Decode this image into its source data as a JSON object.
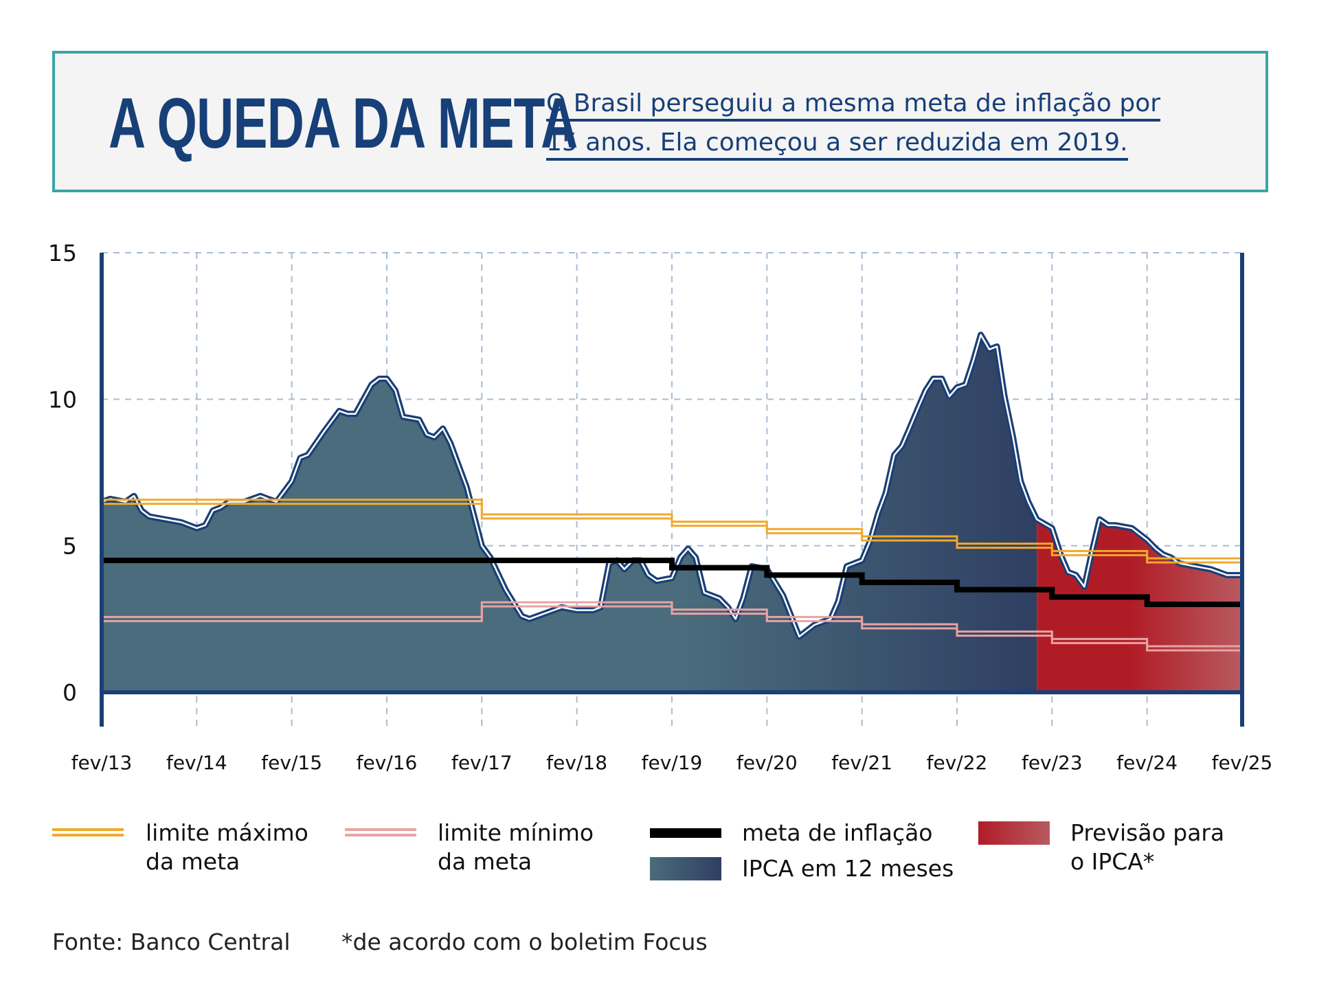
{
  "header": {
    "title": "A QUEDA DA META",
    "subtitle_line1": "O Brasil perseguiu a mesma meta de inflação por",
    "subtitle_line2": "15 anos. Ela começou a ser reduzida em 2019."
  },
  "legend": {
    "max_label_1": "limite máximo",
    "max_label_2": "da meta",
    "min_label_1": "limite mínimo",
    "min_label_2": "da meta",
    "target_label": "meta de inflação",
    "ipca_label": "IPCA em 12 meses",
    "forecast_label_1": "Previsão para",
    "forecast_label_2": "o IPCA*"
  },
  "footer": {
    "source": "Fonte: Banco Central",
    "note": "*de acordo com o boletim Focus"
  },
  "colors": {
    "title": "#173f78",
    "frame": "#3aa6a6",
    "axis": "#1b3f75",
    "ipca_fill_start": "#4a6c7c",
    "ipca_fill_end": "#2f3f62",
    "forecast_fill_start": "#b01c26",
    "forecast_fill_end": "#b85a60",
    "limit_max": "#f0a92c",
    "limit_min": "#e8a3a3",
    "target": "#000000"
  },
  "chart_data": {
    "type": "area",
    "title": "A QUEDA DA META",
    "x_tick_labels": [
      "fev/13",
      "fev/14",
      "fev/15",
      "fev/16",
      "fev/17",
      "fev/18",
      "fev/19",
      "fev/20",
      "fev/21",
      "fev/22",
      "fev/23",
      "fev/24",
      "fev/25"
    ],
    "y_tick_labels": [
      "15",
      "10",
      "5",
      "0"
    ],
    "xlim": [
      2013.08,
      2025.08
    ],
    "ylim": [
      0,
      15
    ],
    "grid": true,
    "legend_position": "bottom",
    "series": [
      {
        "name": "IPCA em 12 meses",
        "type": "area",
        "x": [
          2013.08,
          2013.17,
          2013.33,
          2013.42,
          2013.5,
          2013.58,
          2013.75,
          2013.92,
          2014.08,
          2014.17,
          2014.25,
          2014.33,
          2014.42,
          2014.58,
          2014.75,
          2014.83,
          2014.92,
          2015.08,
          2015.17,
          2015.25,
          2015.42,
          2015.58,
          2015.67,
          2015.75,
          2015.92,
          2016.0,
          2016.08,
          2016.17,
          2016.25,
          2016.42,
          2016.5,
          2016.58,
          2016.67,
          2016.75,
          2016.92,
          2017.08,
          2017.17,
          2017.33,
          2017.5,
          2017.58,
          2017.75,
          2017.92,
          2018.08,
          2018.25,
          2018.33,
          2018.42,
          2018.5,
          2018.58,
          2018.67,
          2018.75,
          2018.83,
          2018.92,
          2019.08,
          2019.17,
          2019.25,
          2019.33,
          2019.42,
          2019.58,
          2019.67,
          2019.75,
          2019.83,
          2019.92,
          2020.08,
          2020.25,
          2020.42,
          2020.58,
          2020.75,
          2020.83,
          2020.92,
          2021.08,
          2021.17,
          2021.25,
          2021.33,
          2021.42,
          2021.5,
          2021.58,
          2021.67,
          2021.75,
          2021.83,
          2021.92,
          2022.0,
          2022.08,
          2022.17,
          2022.25,
          2022.33,
          2022.42,
          2022.5,
          2022.58,
          2022.67,
          2022.75,
          2022.83,
          2022.92
        ],
        "values": [
          6.5,
          6.6,
          6.5,
          6.7,
          6.2,
          6.0,
          5.9,
          5.8,
          5.6,
          5.7,
          6.2,
          6.3,
          6.5,
          6.5,
          6.7,
          6.6,
          6.5,
          7.2,
          8.0,
          8.1,
          8.9,
          9.6,
          9.5,
          9.5,
          10.5,
          10.7,
          10.7,
          10.3,
          9.4,
          9.3,
          8.8,
          8.7,
          9.0,
          8.5,
          7.0,
          5.0,
          4.6,
          3.5,
          2.6,
          2.5,
          2.7,
          2.9,
          2.8,
          2.8,
          2.9,
          4.4,
          4.5,
          4.2,
          4.5,
          4.5,
          4.0,
          3.8,
          3.9,
          4.6,
          4.9,
          4.6,
          3.4,
          3.2,
          2.9,
          2.5,
          3.2,
          4.3,
          4.2,
          3.3,
          1.9,
          2.3,
          2.5,
          3.1,
          4.3,
          4.5,
          5.2,
          6.1,
          6.8,
          8.1,
          8.4,
          9.0,
          9.7,
          10.3,
          10.7,
          10.7,
          10.1,
          10.4,
          10.5,
          11.3,
          12.2,
          11.7,
          11.8,
          10.1,
          8.7,
          7.2,
          6.5,
          5.9
        ]
      },
      {
        "name": "Previsão para o IPCA*",
        "type": "area",
        "x": [
          2022.92,
          2023.08,
          2023.17,
          2023.25,
          2023.33,
          2023.42,
          2023.5,
          2023.58,
          2023.67,
          2023.75,
          2023.92,
          2024.08,
          2024.17,
          2024.25,
          2024.33,
          2024.42,
          2024.58,
          2024.75,
          2024.92,
          2025.08
        ],
        "values": [
          5.8,
          5.6,
          4.7,
          4.1,
          4.0,
          3.6,
          4.8,
          5.9,
          5.7,
          5.7,
          5.6,
          5.2,
          4.9,
          4.7,
          4.6,
          4.4,
          4.3,
          4.2,
          4.0,
          4.0
        ]
      },
      {
        "name": "limite máximo da meta",
        "type": "step",
        "x": [
          2013.08,
          2017.08,
          2019.08,
          2020.08,
          2021.08,
          2022.08,
          2023.08,
          2024.08,
          2025.08
        ],
        "values": [
          6.5,
          6.0,
          5.75,
          5.5,
          5.25,
          5.0,
          4.75,
          4.5,
          4.5
        ]
      },
      {
        "name": "meta de inflação",
        "type": "step",
        "x": [
          2013.08,
          2019.08,
          2020.08,
          2021.08,
          2022.08,
          2023.08,
          2024.08,
          2025.08
        ],
        "values": [
          4.5,
          4.25,
          4.0,
          3.75,
          3.5,
          3.25,
          3.0,
          3.0
        ]
      },
      {
        "name": "limite mínimo da meta",
        "type": "step",
        "x": [
          2013.08,
          2017.08,
          2019.08,
          2020.08,
          2021.08,
          2022.08,
          2023.08,
          2024.08,
          2025.08
        ],
        "values": [
          2.5,
          3.0,
          2.75,
          2.5,
          2.25,
          2.0,
          1.75,
          1.5,
          1.5
        ]
      }
    ]
  }
}
